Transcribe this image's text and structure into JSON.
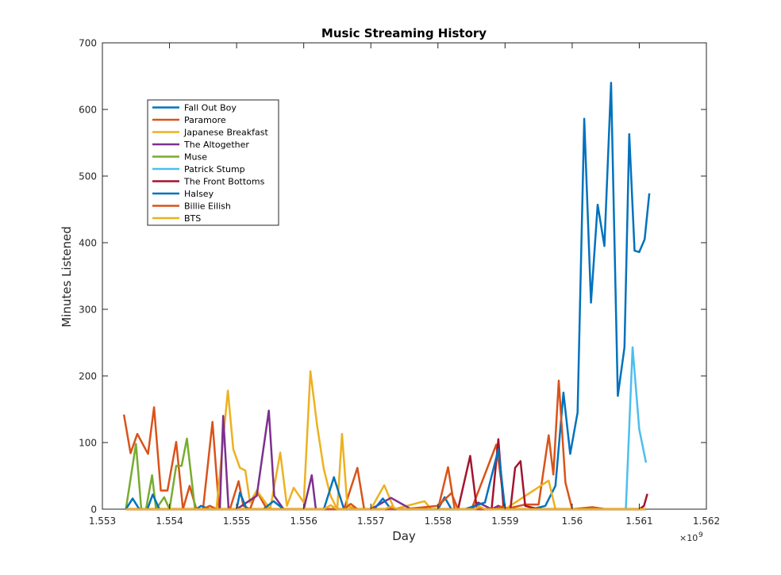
{
  "chart_data": {
    "type": "line",
    "title": "Music Streaming History",
    "xlabel": "Day",
    "ylabel": "Minutes Listened",
    "x_exponent_label": "×10",
    "x_exponent_power": "9",
    "xlim": [
      1553000000,
      1562000000
    ],
    "ylim": [
      0,
      700
    ],
    "xticks": [
      1553000000,
      1554000000,
      1555000000,
      1556000000,
      1557000000,
      1558000000,
      1559000000,
      1560000000,
      1561000000,
      1562000000
    ],
    "xtick_labels": [
      "1.553",
      "1.554",
      "1.555",
      "1.556",
      "1.557",
      "1.558",
      "1.559",
      "1.56",
      "1.561",
      "1.562"
    ],
    "yticks": [
      0,
      100,
      200,
      300,
      400,
      500,
      600,
      700
    ],
    "ytick_labels": [
      "0",
      "100",
      "200",
      "300",
      "400",
      "500",
      "600",
      "700"
    ],
    "legend_position": "top-left",
    "grid": false,
    "series": [
      {
        "name": "Fall Out Boy",
        "color": "#0072BD",
        "points": [
          [
            1553350000,
            0
          ],
          [
            1553550000,
            0
          ],
          [
            1553800000,
            0
          ],
          [
            1554300000,
            0
          ],
          [
            1555000000,
            0
          ],
          [
            1555500000,
            0
          ],
          [
            1556000000,
            0
          ],
          [
            1556500000,
            0
          ],
          [
            1557000000,
            0
          ],
          [
            1557500000,
            0
          ],
          [
            1558000000,
            0
          ],
          [
            1558500000,
            0
          ],
          [
            1559000000,
            0
          ],
          [
            1559400000,
            0
          ],
          [
            1559600000,
            5
          ],
          [
            1559750000,
            35
          ],
          [
            1559870000,
            175
          ],
          [
            1559970000,
            83
          ],
          [
            1560080000,
            145
          ],
          [
            1560180000,
            586
          ],
          [
            1560280000,
            310
          ],
          [
            1560380000,
            457
          ],
          [
            1560480000,
            395
          ],
          [
            1560580000,
            640
          ],
          [
            1560680000,
            170
          ],
          [
            1560780000,
            243
          ],
          [
            1560850000,
            563
          ],
          [
            1560930000,
            388
          ],
          [
            1561000000,
            386
          ],
          [
            1561080000,
            405
          ],
          [
            1561150000,
            474
          ]
        ]
      },
      {
        "name": "Paramore",
        "color": "#D95319",
        "points": [
          [
            1553320000,
            142
          ],
          [
            1553420000,
            84
          ],
          [
            1553520000,
            113
          ],
          [
            1553680000,
            83
          ],
          [
            1553770000,
            153
          ],
          [
            1553870000,
            28
          ],
          [
            1553970000,
            28
          ],
          [
            1554100000,
            101
          ],
          [
            1554200000,
            0
          ],
          [
            1554300000,
            35
          ],
          [
            1554400000,
            0
          ],
          [
            1554500000,
            0
          ],
          [
            1554640000,
            131
          ],
          [
            1554740000,
            0
          ],
          [
            1554900000,
            0
          ],
          [
            1555030000,
            42
          ],
          [
            1555100000,
            5
          ],
          [
            1555200000,
            0
          ],
          [
            1555300000,
            27
          ],
          [
            1555450000,
            0
          ],
          [
            1555800000,
            0
          ],
          [
            1556000000,
            0
          ],
          [
            1556600000,
            0
          ],
          [
            1556800000,
            62
          ],
          [
            1556900000,
            0
          ],
          [
            1557500000,
            0
          ],
          [
            1558000000,
            0
          ],
          [
            1558150000,
            63
          ],
          [
            1558250000,
            0
          ],
          [
            1558500000,
            0
          ],
          [
            1558870000,
            97
          ],
          [
            1559000000,
            0
          ],
          [
            1559300000,
            7
          ],
          [
            1559500000,
            7
          ],
          [
            1559650000,
            111
          ],
          [
            1559720000,
            52
          ],
          [
            1559800000,
            193
          ],
          [
            1559900000,
            40
          ],
          [
            1560000000,
            0
          ],
          [
            1560300000,
            3
          ],
          [
            1560500000,
            0
          ],
          [
            1561100000,
            0
          ]
        ]
      },
      {
        "name": "Japanese Breakfast",
        "color": "#EDB120",
        "points": [
          [
            1553350000,
            0
          ],
          [
            1554000000,
            0
          ],
          [
            1554500000,
            0
          ],
          [
            1554700000,
            0
          ],
          [
            1554870000,
            178
          ],
          [
            1554950000,
            90
          ],
          [
            1555050000,
            62
          ],
          [
            1555130000,
            58
          ],
          [
            1555200000,
            10
          ],
          [
            1555300000,
            28
          ],
          [
            1555500000,
            0
          ],
          [
            1555650000,
            85
          ],
          [
            1555750000,
            5
          ],
          [
            1555850000,
            32
          ],
          [
            1556000000,
            10
          ],
          [
            1556100000,
            207
          ],
          [
            1556200000,
            125
          ],
          [
            1556300000,
            60
          ],
          [
            1556400000,
            20
          ],
          [
            1556500000,
            0
          ],
          [
            1556570000,
            113
          ],
          [
            1556650000,
            5
          ],
          [
            1556800000,
            0
          ],
          [
            1557000000,
            0
          ],
          [
            1557200000,
            36
          ],
          [
            1557350000,
            0
          ],
          [
            1557800000,
            12
          ],
          [
            1557900000,
            0
          ],
          [
            1559000000,
            0
          ],
          [
            1559650000,
            43
          ],
          [
            1559750000,
            0
          ],
          [
            1561100000,
            0
          ]
        ]
      },
      {
        "name": "The Altogether",
        "color": "#7E2F8E",
        "points": [
          [
            1553350000,
            0
          ],
          [
            1554500000,
            0
          ],
          [
            1554750000,
            0
          ],
          [
            1554800000,
            140
          ],
          [
            1554880000,
            0
          ],
          [
            1555000000,
            0
          ],
          [
            1555300000,
            20
          ],
          [
            1555370000,
            70
          ],
          [
            1555480000,
            148
          ],
          [
            1555560000,
            20
          ],
          [
            1555700000,
            0
          ],
          [
            1556000000,
            0
          ],
          [
            1556120000,
            51
          ],
          [
            1556180000,
            0
          ],
          [
            1557000000,
            0
          ],
          [
            1557300000,
            17
          ],
          [
            1557600000,
            0
          ],
          [
            1558500000,
            0
          ],
          [
            1558600000,
            10
          ],
          [
            1558800000,
            0
          ],
          [
            1558900000,
            5
          ],
          [
            1559000000,
            0
          ],
          [
            1561100000,
            0
          ]
        ]
      },
      {
        "name": "Muse",
        "color": "#77AC30",
        "points": [
          [
            1553350000,
            0
          ],
          [
            1553500000,
            98
          ],
          [
            1553580000,
            0
          ],
          [
            1553650000,
            0
          ],
          [
            1553740000,
            51
          ],
          [
            1553800000,
            0
          ],
          [
            1553920000,
            18
          ],
          [
            1554000000,
            0
          ],
          [
            1554100000,
            65
          ],
          [
            1554180000,
            65
          ],
          [
            1554260000,
            106
          ],
          [
            1554380000,
            0
          ],
          [
            1555000000,
            0
          ],
          [
            1556000000,
            0
          ],
          [
            1557000000,
            0
          ],
          [
            1558000000,
            0
          ],
          [
            1559000000,
            0
          ],
          [
            1561100000,
            0
          ]
        ]
      },
      {
        "name": "Patrick Stump",
        "color": "#4DBEEE",
        "points": [
          [
            1553350000,
            0
          ],
          [
            1555000000,
            0
          ],
          [
            1557000000,
            0
          ],
          [
            1559000000,
            0
          ],
          [
            1560000000,
            0
          ],
          [
            1560800000,
            0
          ],
          [
            1560900000,
            243
          ],
          [
            1561000000,
            120
          ],
          [
            1561100000,
            70
          ]
        ]
      },
      {
        "name": "The Front Bottoms",
        "color": "#A2142F",
        "points": [
          [
            1553350000,
            0
          ],
          [
            1555000000,
            0
          ],
          [
            1557000000,
            0
          ],
          [
            1558000000,
            0
          ],
          [
            1558300000,
            0
          ],
          [
            1558480000,
            80
          ],
          [
            1558580000,
            0
          ],
          [
            1558800000,
            0
          ],
          [
            1558900000,
            105
          ],
          [
            1558980000,
            0
          ],
          [
            1559080000,
            0
          ],
          [
            1559150000,
            62
          ],
          [
            1559230000,
            72
          ],
          [
            1559300000,
            5
          ],
          [
            1559500000,
            0
          ],
          [
            1560000000,
            0
          ],
          [
            1561000000,
            0
          ],
          [
            1561070000,
            5
          ],
          [
            1561120000,
            23
          ]
        ]
      },
      {
        "name": "Halsey",
        "color": "#0072BD",
        "points": [
          [
            1553350000,
            0
          ],
          [
            1553450000,
            16
          ],
          [
            1553550000,
            0
          ],
          [
            1553670000,
            0
          ],
          [
            1553750000,
            22
          ],
          [
            1553850000,
            0
          ],
          [
            1554400000,
            0
          ],
          [
            1554470000,
            5
          ],
          [
            1554600000,
            0
          ],
          [
            1555000000,
            0
          ],
          [
            1555050000,
            25
          ],
          [
            1555150000,
            0
          ],
          [
            1555400000,
            0
          ],
          [
            1555550000,
            12
          ],
          [
            1555700000,
            0
          ],
          [
            1556300000,
            0
          ],
          [
            1556450000,
            48
          ],
          [
            1556600000,
            0
          ],
          [
            1557050000,
            0
          ],
          [
            1557180000,
            16
          ],
          [
            1557300000,
            0
          ],
          [
            1558000000,
            0
          ],
          [
            1558100000,
            18
          ],
          [
            1558200000,
            0
          ],
          [
            1558400000,
            0
          ],
          [
            1558700000,
            10
          ],
          [
            1558900000,
            90
          ],
          [
            1559000000,
            0
          ],
          [
            1561100000,
            0
          ]
        ]
      },
      {
        "name": "Billie Eilish",
        "color": "#D95319",
        "points": [
          [
            1553350000,
            0
          ],
          [
            1554000000,
            0
          ],
          [
            1554500000,
            0
          ],
          [
            1554600000,
            5
          ],
          [
            1554700000,
            0
          ],
          [
            1555000000,
            0
          ],
          [
            1556000000,
            0
          ],
          [
            1556600000,
            0
          ],
          [
            1556700000,
            8
          ],
          [
            1556800000,
            0
          ],
          [
            1557300000,
            0
          ],
          [
            1557500000,
            0
          ],
          [
            1558000000,
            5
          ],
          [
            1558200000,
            24
          ],
          [
            1558300000,
            0
          ],
          [
            1558700000,
            0
          ],
          [
            1558850000,
            0
          ],
          [
            1558950000,
            4
          ],
          [
            1559050000,
            0
          ],
          [
            1561100000,
            0
          ]
        ]
      },
      {
        "name": "BTS",
        "color": "#EDB120",
        "points": [
          [
            1553350000,
            0
          ],
          [
            1555000000,
            0
          ],
          [
            1556000000,
            0
          ],
          [
            1556300000,
            0
          ],
          [
            1556400000,
            6
          ],
          [
            1556500000,
            0
          ],
          [
            1557000000,
            0
          ],
          [
            1557200000,
            0
          ],
          [
            1557300000,
            4
          ],
          [
            1557400000,
            0
          ],
          [
            1558000000,
            0
          ],
          [
            1558550000,
            0
          ],
          [
            1558620000,
            4
          ],
          [
            1558700000,
            0
          ],
          [
            1559000000,
            0
          ],
          [
            1561100000,
            0
          ]
        ]
      }
    ]
  }
}
